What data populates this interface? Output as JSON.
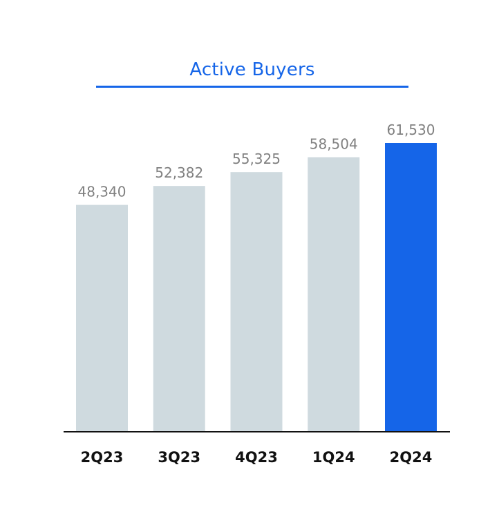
{
  "chart_data": {
    "type": "bar",
    "title": "Active Buyers",
    "categories": [
      "2Q23",
      "3Q23",
      "4Q23",
      "1Q24",
      "2Q24"
    ],
    "values": [
      48340,
      52382,
      55325,
      58504,
      61530
    ],
    "value_labels": [
      "48,340",
      "52,382",
      "55,325",
      "58,504",
      "61,530"
    ],
    "highlight_index": 4,
    "xlabel": "",
    "ylabel": "",
    "ylim": [
      0,
      61530
    ],
    "grid": false,
    "legend": "none"
  },
  "colors": {
    "accent": "#1565e8",
    "bar": "#cfdadf",
    "value_label": "#808080",
    "category_label": "#111111",
    "axis": "#111111"
  }
}
